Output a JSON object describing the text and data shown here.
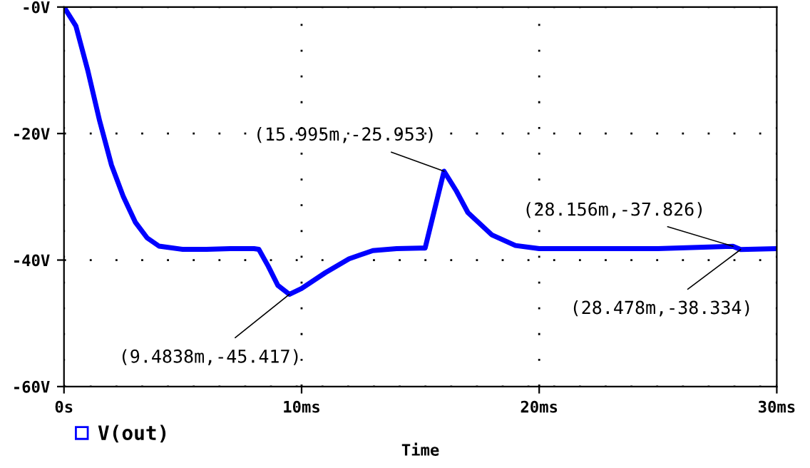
{
  "chart_data": {
    "type": "line",
    "xlabel": "Time",
    "x": [
      0,
      0.5,
      1,
      1.5,
      2,
      2.5,
      3,
      3.5,
      4,
      5,
      6,
      7,
      8,
      8.2,
      8.6,
      9,
      9.4838,
      10,
      11,
      12,
      13,
      14,
      15,
      15.2,
      15.995,
      16.5,
      17,
      18,
      19,
      20,
      25,
      28.156,
      28.478,
      30
    ],
    "series": [
      {
        "name": "V(out)",
        "color": "#0000ff",
        "values": [
          0,
          -3,
          -10,
          -18,
          -25,
          -30,
          -34,
          -36.5,
          -37.8,
          -38.3,
          -38.3,
          -38.2,
          -38.2,
          -38.3,
          -41,
          -44,
          -45.417,
          -44.5,
          -42,
          -39.8,
          -38.5,
          -38.2,
          -38.1,
          -38.1,
          -25.953,
          -29,
          -32.5,
          -36,
          -37.7,
          -38.2,
          -38.2,
          -37.826,
          -38.334,
          -38.2
        ]
      }
    ],
    "xlim": [
      0,
      30
    ],
    "xticks": [
      {
        "value": 0,
        "label": "0s"
      },
      {
        "value": 10,
        "label": "10ms"
      },
      {
        "value": 20,
        "label": "20ms"
      },
      {
        "value": 30,
        "label": "30ms"
      }
    ],
    "ylim": [
      -60,
      0
    ],
    "yticks": [
      {
        "value": -60,
        "label": "-60V"
      },
      {
        "value": -40,
        "label": "-40V"
      },
      {
        "value": -20,
        "label": "-20V"
      },
      {
        "value": 0,
        "label": "-0V"
      }
    ],
    "annotations": [
      {
        "text": "(9.4838m,-45.417)",
        "x": 9.4838,
        "y": -45.417
      },
      {
        "text": "(15.995m,-25.953)",
        "x": 15.995,
        "y": -25.953
      },
      {
        "text": "(28.156m,-37.826)",
        "x": 28.156,
        "y": -37.826
      },
      {
        "text": "(28.478m,-38.334)",
        "x": 28.478,
        "y": -38.334
      }
    ],
    "grid": true,
    "legend": "bottom left",
    "line_style": "solid"
  }
}
